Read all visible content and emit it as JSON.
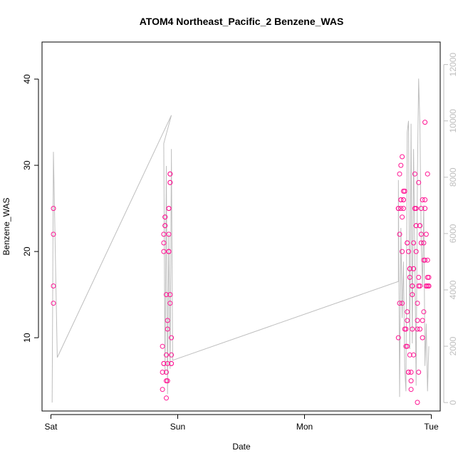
{
  "chart_data": {
    "type": "scatter",
    "title": "ATOM4 Northeast_Pacific_2 Benzene_WAS",
    "xlabel": "Date",
    "ylabel": "Benzene_WAS",
    "x_ticks": [
      "Sat",
      "Sun",
      "Mon",
      "Tue"
    ],
    "x_range_days": [
      -0.07,
      3.07
    ],
    "ylim": [
      1.5,
      44.3
    ],
    "y_ticks": [
      10,
      20,
      30,
      40
    ],
    "y2lim": [
      -300,
      12800
    ],
    "y2_ticks": [
      0,
      2000,
      4000,
      6000,
      8000,
      10000,
      12000
    ],
    "grid": false,
    "colors": {
      "points": "#ff1493",
      "line": "#bebebe",
      "axis": "#000000"
    },
    "series": [
      {
        "name": "",
        "kind": "points",
        "axis": "left",
        "x_days": [
          0.02,
          0.02,
          0.02,
          0.02,
          0.88,
          0.88,
          0.88,
          0.89,
          0.89,
          0.89,
          0.89,
          0.89,
          0.9,
          0.9,
          0.9,
          0.9,
          0.91,
          0.91,
          0.91,
          0.91,
          0.91,
          0.92,
          0.92,
          0.92,
          0.92,
          0.93,
          0.93,
          0.93,
          0.93,
          0.93,
          0.93,
          0.94,
          0.94,
          0.94,
          0.94,
          0.94,
          0.94,
          0.95,
          0.95,
          0.95,
          0.95,
          2.74,
          2.74,
          2.74,
          2.75,
          2.75,
          2.75,
          2.76,
          2.76,
          2.76,
          2.76,
          2.77,
          2.77,
          2.77,
          2.77,
          2.78,
          2.78,
          2.78,
          2.78,
          2.79,
          2.79,
          2.79,
          2.8,
          2.8,
          2.81,
          2.81,
          2.81,
          2.81,
          2.81,
          2.82,
          2.82,
          2.82,
          2.83,
          2.83,
          2.83,
          2.83,
          2.84,
          2.84,
          2.84,
          2.85,
          2.85,
          2.85,
          2.85,
          2.86,
          2.86,
          2.86,
          2.86,
          2.87,
          2.87,
          2.87,
          2.88,
          2.88,
          2.88,
          2.88,
          2.89,
          2.89,
          2.89,
          2.89,
          2.9,
          2.9,
          2.9,
          2.9,
          2.91,
          2.91,
          2.91,
          2.91,
          2.92,
          2.92,
          2.92,
          2.93,
          2.93,
          2.93,
          2.94,
          2.94,
          2.94,
          2.95,
          2.95,
          2.95,
          2.95,
          2.96,
          2.96,
          2.96,
          2.97,
          2.97,
          2.97,
          2.97,
          2.98,
          2.98,
          2.98
        ],
        "y": [
          14,
          16,
          22,
          25,
          4,
          9,
          6,
          7,
          7,
          20,
          21,
          22,
          23,
          23,
          24,
          24,
          15,
          6,
          8,
          3,
          5,
          5,
          7,
          12,
          11,
          20,
          20,
          20,
          25,
          22,
          25,
          28,
          28,
          29,
          29,
          15,
          14,
          10,
          8,
          7,
          7,
          25,
          25,
          10,
          14,
          22,
          29,
          30,
          25,
          26,
          26,
          31,
          24,
          20,
          14,
          26,
          26,
          25,
          27,
          27,
          27,
          11,
          11,
          9,
          9,
          12,
          13,
          21,
          21,
          20,
          6,
          6,
          8,
          17,
          18,
          18,
          6,
          5,
          4,
          15,
          16,
          16,
          11,
          8,
          18,
          18,
          21,
          25,
          25,
          29,
          23,
          23,
          25,
          20,
          14,
          12,
          11,
          2.5,
          6,
          17,
          28,
          16,
          23,
          23,
          11,
          16,
          22,
          21,
          25,
          26,
          10,
          12,
          13,
          19,
          21,
          25,
          26,
          35,
          19,
          22,
          16,
          16,
          29,
          17,
          16,
          19,
          17,
          16,
          16
        ]
      },
      {
        "name": "",
        "kind": "line",
        "axis": "right",
        "x_days": [
          0.01,
          0.02,
          0.05,
          0.95,
          0.95,
          0.89,
          0.9,
          0.91,
          0.92,
          0.93,
          0.94,
          0.95,
          0.95,
          0.96,
          2.74,
          2.74,
          2.75,
          2.76,
          2.77,
          2.78,
          2.79,
          2.8,
          2.81,
          2.82,
          2.83,
          2.84,
          2.85,
          2.86,
          2.87,
          2.88,
          2.89,
          2.9,
          2.91,
          2.92,
          2.93,
          2.94,
          2.95,
          2.96,
          2.97,
          2.98
        ],
        "y2": [
          0,
          8900,
          1600,
          10200,
          10200,
          9200,
          1000,
          8400,
          300,
          6000,
          1200,
          8600,
          9000,
          1500,
          4300,
          7900,
          200,
          6200,
          3000,
          5000,
          1200,
          400,
          9600,
          10000,
          1900,
          9900,
          2100,
          9000,
          5000,
          600,
          8000,
          11500,
          9900,
          5800,
          4100,
          7000,
          1300,
          2800,
          400,
          2000
        ]
      }
    ]
  }
}
